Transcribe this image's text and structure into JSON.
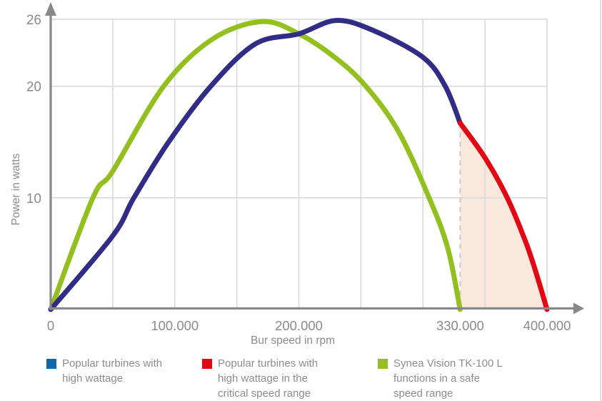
{
  "chart_data": {
    "type": "line",
    "title": "",
    "xlabel": "Bur speed in rpm",
    "ylabel": "Power in watts",
    "xlim": [
      0,
      400000
    ],
    "ylim": [
      0,
      26
    ],
    "grid": true,
    "legend_position": "bottom",
    "x_gridline_step_rpm": 50000,
    "x_ticks": [
      {
        "value": 0,
        "label": "0"
      },
      {
        "value": 100000,
        "label": "100.000"
      },
      {
        "value": 200000,
        "label": "200.000"
      },
      {
        "value": 330000,
        "label": "330.000"
      },
      {
        "value": 400000,
        "label": "400.000"
      }
    ],
    "y_ticks": [
      {
        "value": 10,
        "label": "10"
      },
      {
        "value": 20,
        "label": "20"
      },
      {
        "value": 26,
        "label": "26"
      }
    ],
    "critical_range_start_rpm": 330000,
    "critical_range_end_rpm": 400000,
    "dashed_marker_rpm": 330000,
    "series": [
      {
        "id": "blue",
        "name": "Popular turbines with high wattage",
        "color": "#312c86",
        "points_rpm_watts": [
          [
            0,
            0
          ],
          [
            50000,
            6.6
          ],
          [
            67000,
            10
          ],
          [
            95000,
            15
          ],
          [
            129000,
            20
          ],
          [
            165000,
            23.8
          ],
          [
            200000,
            24.7
          ],
          [
            230000,
            25.9
          ],
          [
            260000,
            25.0
          ],
          [
            300000,
            22.6
          ],
          [
            318000,
            20
          ],
          [
            330000,
            16.7
          ]
        ]
      },
      {
        "id": "red",
        "name": "Popular turbines with high wattage in the critical speed range",
        "color": "#e30613",
        "area_fill": "#fbe8dc",
        "points_rpm_watts": [
          [
            330000,
            16.7
          ],
          [
            350000,
            13.6
          ],
          [
            368000,
            10
          ],
          [
            383000,
            6
          ],
          [
            392000,
            3
          ],
          [
            400000,
            0
          ]
        ]
      },
      {
        "id": "green",
        "name": "Synea Vision TK-100 L functions in a safe speed range",
        "color": "#93c01f",
        "points_rpm_watts": [
          [
            0,
            0
          ],
          [
            34000,
            10
          ],
          [
            50000,
            12.4
          ],
          [
            91000,
            20
          ],
          [
            130000,
            24.2
          ],
          [
            170000,
            25.8
          ],
          [
            200000,
            24.7
          ],
          [
            230000,
            22.5
          ],
          [
            254000,
            20
          ],
          [
            280000,
            16
          ],
          [
            305000,
            10
          ],
          [
            320000,
            5.5
          ],
          [
            330000,
            0
          ]
        ]
      }
    ]
  },
  "legend": {
    "items": [
      {
        "swatch_color": "#1565a9",
        "label": "Popular turbines with\nhigh wattage"
      },
      {
        "swatch_color": "#e30613",
        "label": "Popular turbines with\nhigh wattage in the\ncritical speed range"
      },
      {
        "swatch_color": "#97be1e",
        "label": "Synea Vision TK-100 L\nfunctions in a safe\nspeed range"
      }
    ]
  },
  "style": {
    "gridline_color": "#d9d9d9",
    "axis_color": "#87888a",
    "dashed_line_color": "#cdcdcd",
    "tick_text_color": "#8b8b8b",
    "legend_text_color": "#8c8c8c",
    "area_fill": "#fbe8dc",
    "right_border_color": "#dedede"
  }
}
